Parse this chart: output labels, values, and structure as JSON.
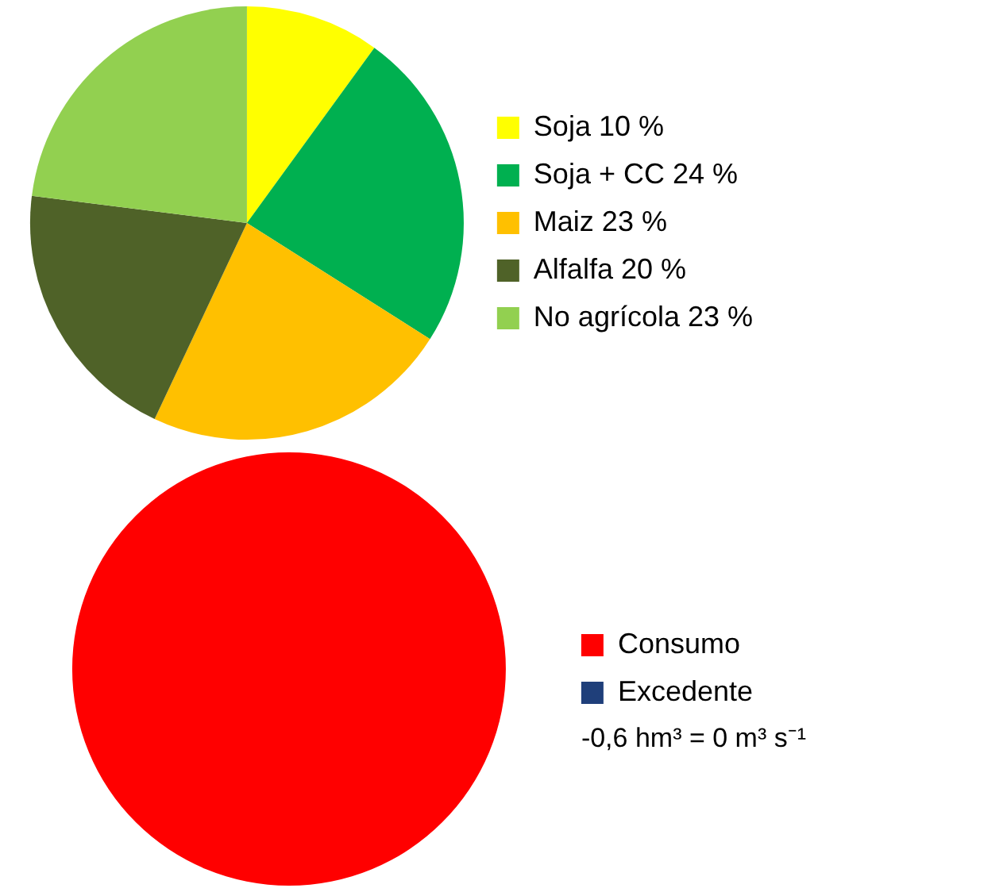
{
  "chart_data": [
    {
      "type": "pie",
      "categories": [
        "Soja 10 %",
        "Soja + CC 24 %",
        "Maiz 23 %",
        "Alfalfa 20 %",
        "No agrícola 23 %"
      ],
      "values": [
        10,
        24,
        23,
        20,
        23
      ],
      "colors": [
        "#ffff00",
        "#00b050",
        "#ffc000",
        "#4f6228",
        "#92d050"
      ],
      "legend": "right"
    },
    {
      "type": "pie",
      "categories": [
        "Consumo",
        "Excedente"
      ],
      "values": [
        100,
        0
      ],
      "colors": [
        "#ff0000",
        "#1f3f7a"
      ],
      "legend": "right",
      "annotations": [
        "-0,6 hm³ = 0 m³ s⁻¹"
      ]
    }
  ]
}
